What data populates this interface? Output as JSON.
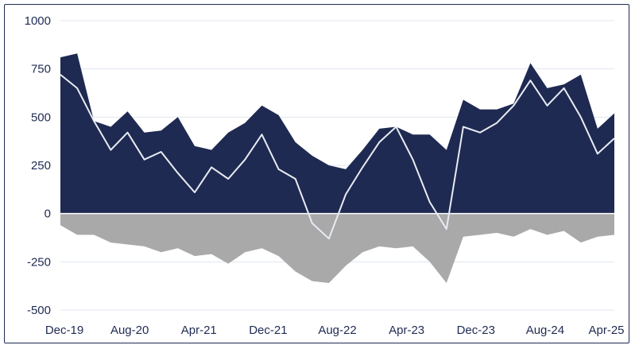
{
  "chart_data": {
    "type": "area",
    "title": "",
    "xlabel": "",
    "ylabel": "",
    "ylim": [
      -500,
      1000
    ],
    "yticks": [
      1000,
      750,
      500,
      250,
      0,
      -250,
      -500
    ],
    "x_tick_labels": [
      "Dec-19",
      "Aug-20",
      "Apr-21",
      "Dec-21",
      "Aug-22",
      "Apr-23",
      "Dec-23",
      "Aug-24",
      "Apr-25"
    ],
    "grid": "horizontal",
    "legend": "none",
    "colors": {
      "upper_area": "#1f2a52",
      "lower_area": "#a9a9a9",
      "line": "#e8ecf3",
      "axis_text": "#1f2a52",
      "grid": "#dfe6ef"
    },
    "series": [
      {
        "style": "area",
        "x": [
          "Dec-19",
          "Feb-20",
          "Apr-20",
          "Jun-20",
          "Aug-20",
          "Oct-20",
          "Dec-20",
          "Feb-21",
          "Apr-21",
          "Jun-21",
          "Aug-21",
          "Oct-21",
          "Dec-21",
          "Feb-22",
          "Apr-22",
          "Jun-22",
          "Aug-22",
          "Oct-22",
          "Dec-22",
          "Feb-23",
          "Apr-23",
          "Jun-23",
          "Aug-23",
          "Oct-23",
          "Dec-23",
          "Feb-24",
          "Apr-24",
          "Jun-24",
          "Aug-24",
          "Oct-24",
          "Dec-24",
          "Feb-25",
          "Apr-25",
          "May-25"
        ],
        "values": [
          810,
          830,
          480,
          450,
          530,
          420,
          430,
          500,
          350,
          330,
          420,
          470,
          560,
          510,
          370,
          300,
          250,
          230,
          330,
          440,
          450,
          410,
          410,
          330,
          590,
          540,
          540,
          570,
          780,
          650,
          670,
          720,
          440,
          520
        ]
      },
      {
        "style": "area",
        "x": [
          "Dec-19",
          "Feb-20",
          "Apr-20",
          "Jun-20",
          "Aug-20",
          "Oct-20",
          "Dec-20",
          "Feb-21",
          "Apr-21",
          "Jun-21",
          "Aug-21",
          "Oct-21",
          "Dec-21",
          "Feb-22",
          "Apr-22",
          "Jun-22",
          "Aug-22",
          "Oct-22",
          "Dec-22",
          "Feb-23",
          "Apr-23",
          "Jun-23",
          "Aug-23",
          "Oct-23",
          "Dec-23",
          "Feb-24",
          "Apr-24",
          "Jun-24",
          "Aug-24",
          "Oct-24",
          "Dec-24",
          "Feb-25",
          "Apr-25",
          "May-25"
        ],
        "values": [
          -60,
          -110,
          -110,
          -150,
          -160,
          -170,
          -200,
          -180,
          -220,
          -210,
          -260,
          -200,
          -180,
          -220,
          -300,
          -350,
          -360,
          -270,
          -200,
          -170,
          -180,
          -170,
          -250,
          -360,
          -120,
          -110,
          -100,
          -120,
          -80,
          -110,
          -90,
          -150,
          -120,
          -110
        ]
      },
      {
        "style": "line",
        "x": [
          "Dec-19",
          "Feb-20",
          "Apr-20",
          "Jun-20",
          "Aug-20",
          "Oct-20",
          "Dec-20",
          "Feb-21",
          "Apr-21",
          "Jun-21",
          "Aug-21",
          "Oct-21",
          "Dec-21",
          "Feb-22",
          "Apr-22",
          "Jun-22",
          "Aug-22",
          "Oct-22",
          "Dec-22",
          "Feb-23",
          "Apr-23",
          "Jun-23",
          "Aug-23",
          "Oct-23",
          "Dec-23",
          "Feb-24",
          "Apr-24",
          "Jun-24",
          "Aug-24",
          "Oct-24",
          "Dec-24",
          "Feb-25",
          "Apr-25",
          "May-25"
        ],
        "values": [
          720,
          650,
          480,
          330,
          420,
          280,
          320,
          210,
          110,
          240,
          180,
          280,
          410,
          230,
          180,
          -50,
          -130,
          100,
          240,
          370,
          450,
          280,
          60,
          -80,
          450,
          420,
          470,
          560,
          690,
          560,
          650,
          500,
          310,
          390
        ]
      }
    ]
  }
}
